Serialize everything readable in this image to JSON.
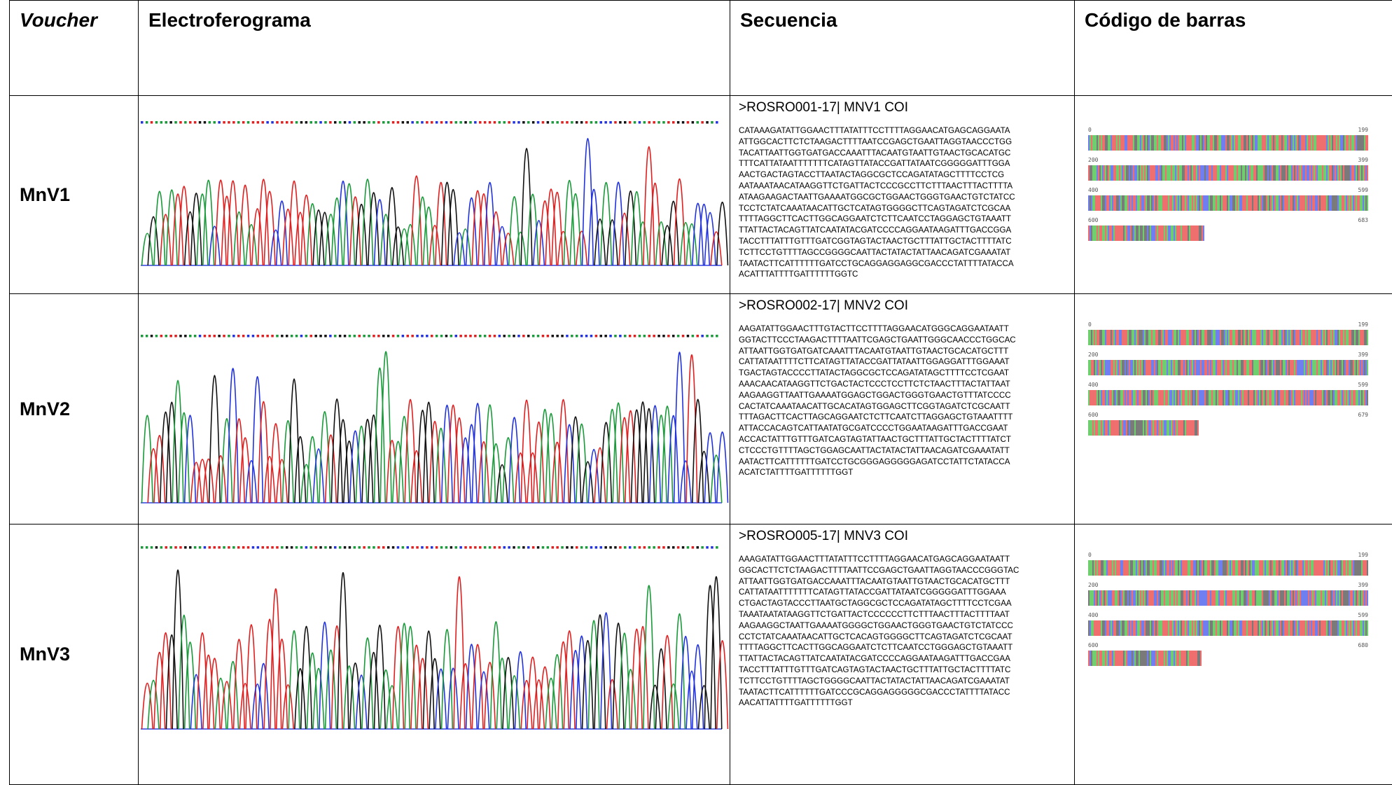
{
  "header": {
    "columns": [
      "Voucher",
      "Electroferograma",
      "Secuencia",
      "Código de barras"
    ]
  },
  "rows": [
    {
      "voucher": "MnV1",
      "sequence_title": ">ROSRO001-17| MNV1 COI",
      "sequence_lines": [
        "CATAAAGATATTGGAACTTTATATTTCCTTTTAGGAACATGAGCAGGAATA",
        "ATTGGCACTTCTCTAAGACTTTTAATCCGAGCTGAATTAGGTAACCCTGG",
        "TACATTAATTGGTGATGACCAAATTTACAATGTAATTGTAACTGCACATGC",
        "TTTCATTATAATTTTTTTCATAGTTATACCGATTATAATCGGGGGATTTGGA",
        "AACTGACTAGTACCTTAATACTAGGCGCTCCAGATATAGCTTTTCCTCG",
        "AATAAATAACATAAGGTTCTGATTACTCCCGCCTTCTTTAACTTTACTTTTA",
        "ATAAGAAGACTAATTGAAAATGGCGCTGGAACTGGGTGAACTGTCTATCC",
        "TCCTCTATCAAATAACATTGCTCATAGTGGGGCTTCAGTAGATCTCGCAA",
        "TTTTAGGCTTCACTTGGCAGGAATCTCTTCAATCCTAGGAGCTGTAAATT",
        "TTATTACTACAGTTATCAATATACGATCCCCAGGAATAAGATTTGACCGGA",
        "TACCTTTATTTGTTTGATCGGTAGTACTAACTGCTTTATTGCTACTTTTATC",
        "TCTTCCTGTTTTAGCCGGGGCAATTACTATACTATTAACAGATCGAAATAT",
        "TAATACTTCATTTTTTGATCCTGCAGGAGGAGGCGACCCTATTTTATACCA",
        "ACATTTATTTTGATTTTTTGGTC"
      ],
      "barcode_labels": [
        [
          "0",
          "199"
        ],
        [
          "200",
          "399"
        ],
        [
          "400",
          "599"
        ],
        [
          "600",
          "683"
        ]
      ]
    },
    {
      "voucher": "MnV2",
      "sequence_title": ">ROSRO002-17| MNV2 COI",
      "sequence_lines": [
        "AAGATATTGGAACTTTGTACTTCCTTTTAGGAACATGGGCAGGAATAATT",
        "GGTACTTCCCTAAGACTTTTAATTCGAGCTGAATTGGGCAACCCTGGCAC",
        "ATTAATTGGTGATGATCAAATTTACAATGTAATTGTAACTGCACATGCTTT",
        "CATTATAATTTTCTTCATAGTTATACCGATTATAATTGGAGGATTTGGAAAT",
        "TGACTAGTACCCCTTATACTAGGCGCTCCAGATATAGCTTTTCCTCGAAT",
        "AAACAACATAAGGTTCTGACTACTCCCTCCTTCTCTAACTTTACTATTAAT",
        "AAGAAGGTTAATTGAAAATGGAGCTGGACTGGGTGAACTGTTTATCCCC",
        "CACTATCAAATAACATTGCACATAGTGGAGCTTCGGTAGATCTCGCAATT",
        "TTTAGACTTCACTTAGCAGGAATCTCTTCAATCTTAGGAGCTGTAAATTTT",
        "ATTACCACAGTCATTAATATGCGATCCCCTGGAATAAGATTTGACCGAAT",
        "ACCACTATTTGTTTGATCAGTAGTATTAACTGCTTTATTGCTACTTTTATCT",
        "CTCCCTGTTTTAGCTGGAGCAATTACTATACTATTAACAGATCGAAATATT",
        "AATACTTCATTTTTTGATCCTGCGGGAGGGGGAGATCCTATTCTATACCA",
        "ACATCTATTTTGATTTTTTGGT"
      ],
      "barcode_labels": [
        [
          "0",
          "199"
        ],
        [
          "200",
          "399"
        ],
        [
          "400",
          "599"
        ],
        [
          "600",
          "679"
        ]
      ]
    },
    {
      "voucher": "MnV3",
      "sequence_title": ">ROSRO005-17| MNV3 COI",
      "sequence_lines": [
        "AAAGATATTGGAACTTTATATTTCCTTTTAGGAACATGAGCAGGAATAATT",
        "GGCACTTCTCTAAGACTTTTAATTCCGAGCTGAATTAGGTAACCCGGGTAC",
        "ATTAATTGGTGATGACCAAATTTACAATGTAATTGTAACTGCACATGCTTT",
        "CATTATAATTTTTTTCATAGTTATACCGATTATAATCGGGGGATTTGGAAA",
        "CTGACTAGTACCCTTAATGCTAGGCGCTCCAGATATAGCTTTTCCTCGAA",
        "TAAATAATATAAGGTTCTGATTACTCCCCCCTTCTTTAACTTTACTTTTAAT",
        "AAGAAGGCTAATTGAAAATGGGGCTGGAACTGGGTGAACTGTCTATCCC",
        "CCTCTATCAAATAACATTGCTCACAGTGGGGCTTCAGTAGATCTCGCAAT",
        "TTTTAGGCTTCACTTGGCAGGAATCTCTTCAATCCTGGGAGCTGTAAATT",
        "TTATTACTACAGTTATCAATATACGATCCCCAGGAATAAGATTTGACCGAA",
        "TACCTTTATTTGTTTGATCAGTAGTACTAACTGCTTTATTGCTACTTTTATC",
        "TCTTCCTGTTTTAGCTGGGGCAATTACTATACTATTAACAGATCGAAATAT",
        "TAATACTTCATTTTTTGATCCCGCAGGAGGGGGCGACCCTATTTTATACC",
        "AACATTATTTTGATTTTTTGGT"
      ],
      "barcode_labels": [
        [
          "0",
          "199"
        ],
        [
          "200",
          "399"
        ],
        [
          "400",
          "599"
        ],
        [
          "600",
          "680"
        ]
      ]
    }
  ]
}
